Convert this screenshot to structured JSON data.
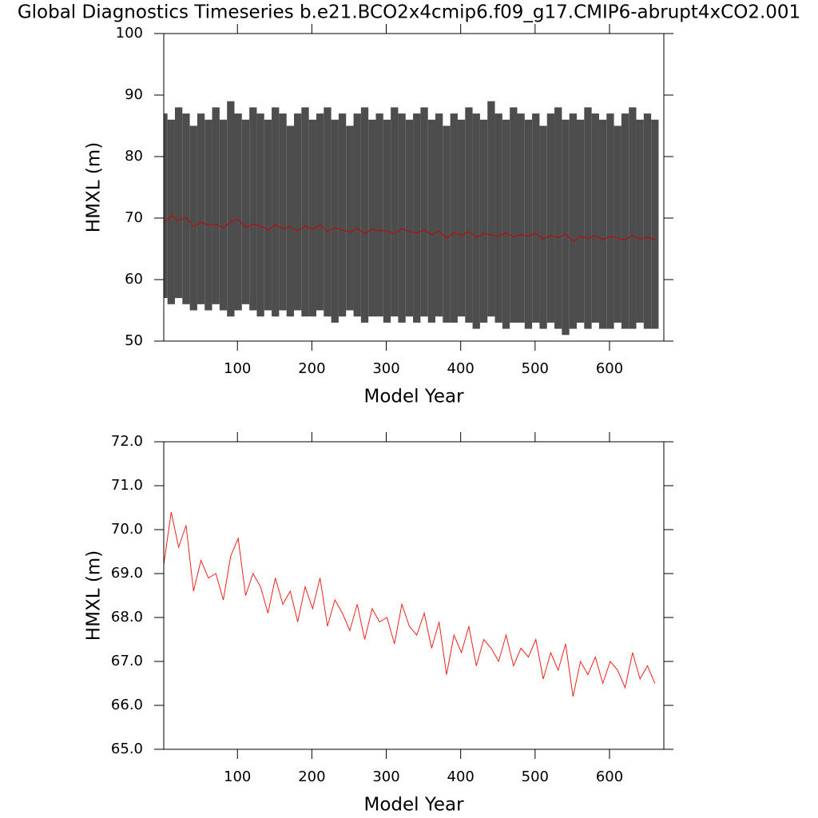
{
  "chart_data": [
    {
      "type": "band",
      "title": "Global Diagnostics Timeseries b.e21.BCO2x4cmip6.f09_g17.CMIP6-abrupt4xCO2.001",
      "x_label": "Model Year",
      "y_label": "HMXL (m)",
      "x": [
        1,
        11,
        21,
        31,
        41,
        51,
        61,
        71,
        81,
        91,
        101,
        111,
        121,
        131,
        141,
        151,
        161,
        171,
        181,
        191,
        201,
        211,
        221,
        231,
        241,
        251,
        261,
        271,
        281,
        291,
        301,
        311,
        321,
        331,
        341,
        351,
        361,
        371,
        381,
        391,
        401,
        411,
        421,
        431,
        441,
        451,
        461,
        471,
        481,
        491,
        501,
        511,
        521,
        531,
        541,
        551,
        561,
        571,
        581,
        591,
        601,
        611,
        621,
        631,
        641,
        651,
        661
      ],
      "series": [
        {
          "color": "#4d4d4d",
          "values": [
            87,
            86,
            88,
            87,
            85,
            87,
            86,
            88,
            86,
            89,
            87,
            86,
            88,
            87,
            86,
            88,
            87,
            85,
            87,
            88,
            86,
            87,
            88,
            86,
            87,
            85,
            87,
            88,
            86,
            87,
            86,
            88,
            87,
            86,
            87,
            88,
            86,
            87,
            85,
            87,
            86,
            88,
            87,
            86,
            89,
            87,
            86,
            88,
            87,
            86,
            87,
            85,
            87,
            88,
            86,
            87,
            86,
            88,
            87,
            86,
            87,
            85,
            87,
            88,
            86,
            87,
            86
          ]
        },
        {
          "color": "#4d4d4d",
          "values": [
            57,
            56,
            57,
            56,
            55,
            56,
            55,
            56,
            55,
            54,
            55,
            56,
            55,
            54,
            55,
            54,
            55,
            54,
            55,
            54,
            54,
            55,
            54,
            53,
            54,
            55,
            54,
            53,
            54,
            54,
            53,
            54,
            53,
            54,
            53,
            54,
            53,
            54,
            53,
            53,
            54,
            53,
            52,
            53,
            54,
            53,
            52,
            53,
            53,
            52,
            53,
            52,
            53,
            52,
            51,
            52,
            53,
            52,
            53,
            52,
            52,
            53,
            52,
            52,
            53,
            52,
            52
          ]
        },
        {
          "color": "#cc0000",
          "values": [
            69.2,
            70.4,
            69.6,
            70.1,
            68.6,
            69.3,
            68.9,
            69.0,
            68.4,
            69.4,
            69.8,
            68.5,
            69.0,
            68.7,
            68.1,
            68.9,
            68.3,
            68.6,
            67.9,
            68.7,
            68.2,
            68.9,
            67.8,
            68.4,
            68.1,
            67.7,
            68.3,
            67.5,
            68.2,
            67.9,
            68.0,
            67.4,
            68.3,
            67.8,
            67.6,
            68.1,
            67.3,
            67.9,
            66.7,
            67.6,
            67.2,
            67.8,
            66.9,
            67.5,
            67.3,
            67.0,
            67.6,
            66.9,
            67.3,
            67.1,
            67.5,
            66.6,
            67.2,
            66.8,
            67.4,
            66.2,
            67.0,
            66.7,
            67.1,
            66.5,
            67.0,
            66.8,
            66.4,
            67.2,
            66.6,
            66.9,
            66.5
          ]
        }
      ],
      "xlim": [
        1,
        673
      ],
      "xticks": [
        100,
        200,
        300,
        400,
        500,
        600
      ],
      "ylim": [
        50,
        100
      ],
      "yticks": [
        50,
        60,
        70,
        80,
        90,
        100
      ]
    },
    {
      "type": "line",
      "x_label": "Model Year",
      "y_label": "HMXL (m)",
      "x": [
        1,
        11,
        21,
        31,
        41,
        51,
        61,
        71,
        81,
        91,
        101,
        111,
        121,
        131,
        141,
        151,
        161,
        171,
        181,
        191,
        201,
        211,
        221,
        231,
        241,
        251,
        261,
        271,
        281,
        291,
        301,
        311,
        321,
        331,
        341,
        351,
        361,
        371,
        381,
        391,
        401,
        411,
        421,
        431,
        441,
        451,
        461,
        471,
        481,
        491,
        501,
        511,
        521,
        531,
        541,
        551,
        561,
        571,
        581,
        591,
        601,
        611,
        621,
        631,
        641,
        651,
        661
      ],
      "series": [
        {
          "color": "#ee2222",
          "values": [
            69.2,
            70.4,
            69.6,
            70.1,
            68.6,
            69.3,
            68.9,
            69.0,
            68.4,
            69.4,
            69.8,
            68.5,
            69.0,
            68.7,
            68.1,
            68.9,
            68.3,
            68.6,
            67.9,
            68.7,
            68.2,
            68.9,
            67.8,
            68.4,
            68.1,
            67.7,
            68.3,
            67.5,
            68.2,
            67.9,
            68.0,
            67.4,
            68.3,
            67.8,
            67.6,
            68.1,
            67.3,
            67.9,
            66.7,
            67.6,
            67.2,
            67.8,
            66.9,
            67.5,
            67.3,
            67.0,
            67.6,
            66.9,
            67.3,
            67.1,
            67.5,
            66.6,
            67.2,
            66.8,
            67.4,
            66.2,
            67.0,
            66.7,
            67.1,
            66.5,
            67.0,
            66.8,
            66.4,
            67.2,
            66.6,
            66.9,
            66.5
          ]
        }
      ],
      "xlim": [
        1,
        673
      ],
      "xticks": [
        100,
        200,
        300,
        400,
        500,
        600
      ],
      "ylim": [
        65,
        72
      ],
      "yticks": [
        {
          "value": 65,
          "label": "65.0"
        },
        {
          "value": 66,
          "label": "66.0"
        },
        {
          "value": 67,
          "label": "67.0"
        },
        {
          "value": 68,
          "label": "68.0"
        },
        {
          "value": 69,
          "label": "69.0"
        },
        {
          "value": 70,
          "label": "70.0"
        },
        {
          "value": 71,
          "label": "71.0"
        },
        {
          "value": 72,
          "label": "72.0"
        }
      ]
    }
  ]
}
